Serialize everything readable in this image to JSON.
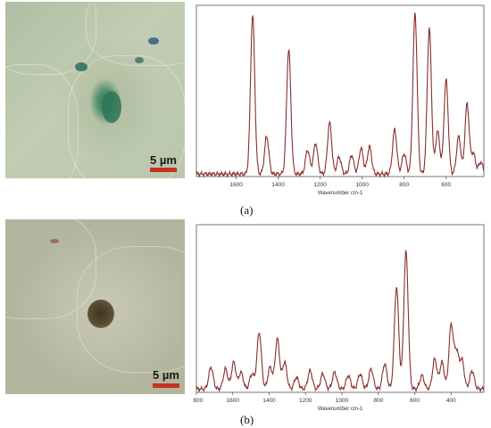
{
  "panels": [
    {
      "label": "(a)",
      "scale_label": "5 µm"
    },
    {
      "label": "(b)",
      "scale_label": "5 µm"
    }
  ],
  "colors": {
    "line": "#8b2c2c",
    "axis": "#555555",
    "scale_bar": "#c8321e"
  },
  "chart_data": [
    {
      "type": "line",
      "title": "",
      "xlabel": "Wavenumber cm-1",
      "ylabel": "",
      "xlim": [
        1790,
        420
      ],
      "ylim": [
        0,
        1
      ],
      "x_reversed": true,
      "grid": false,
      "xticks": [
        1600,
        1400,
        1200,
        1000,
        800,
        600
      ],
      "peaks": [
        {
          "x": 1522,
          "y": 0.93
        },
        {
          "x": 1455,
          "y": 0.22
        },
        {
          "x": 1350,
          "y": 0.73
        },
        {
          "x": 1260,
          "y": 0.14
        },
        {
          "x": 1222,
          "y": 0.18
        },
        {
          "x": 1155,
          "y": 0.3
        },
        {
          "x": 1110,
          "y": 0.1
        },
        {
          "x": 1050,
          "y": 0.11
        },
        {
          "x": 1005,
          "y": 0.15
        },
        {
          "x": 965,
          "y": 0.16
        },
        {
          "x": 845,
          "y": 0.26
        },
        {
          "x": 800,
          "y": 0.12
        },
        {
          "x": 748,
          "y": 0.94
        },
        {
          "x": 680,
          "y": 0.85
        },
        {
          "x": 640,
          "y": 0.25
        },
        {
          "x": 600,
          "y": 0.55
        },
        {
          "x": 540,
          "y": 0.22
        },
        {
          "x": 500,
          "y": 0.41
        },
        {
          "x": 470,
          "y": 0.12
        },
        {
          "x": 435,
          "y": 0.07
        }
      ]
    },
    {
      "type": "line",
      "title": "",
      "xlabel": "Wavenumber cm-1",
      "ylabel": "",
      "xlim": [
        1800,
        220
      ],
      "ylim": [
        0,
        1
      ],
      "x_reversed": true,
      "grid": false,
      "xticks": [
        1800,
        1600,
        1400,
        1200,
        1000,
        800,
        600,
        400
      ],
      "peaks": [
        {
          "x": 1720,
          "y": 0.13
        },
        {
          "x": 1640,
          "y": 0.12
        },
        {
          "x": 1595,
          "y": 0.16
        },
        {
          "x": 1555,
          "y": 0.1
        },
        {
          "x": 1495,
          "y": 0.09
        },
        {
          "x": 1455,
          "y": 0.34
        },
        {
          "x": 1395,
          "y": 0.13
        },
        {
          "x": 1355,
          "y": 0.3
        },
        {
          "x": 1315,
          "y": 0.16
        },
        {
          "x": 1250,
          "y": 0.07
        },
        {
          "x": 1175,
          "y": 0.11
        },
        {
          "x": 1105,
          "y": 0.09
        },
        {
          "x": 1040,
          "y": 0.1
        },
        {
          "x": 965,
          "y": 0.08
        },
        {
          "x": 900,
          "y": 0.09
        },
        {
          "x": 840,
          "y": 0.12
        },
        {
          "x": 765,
          "y": 0.15
        },
        {
          "x": 700,
          "y": 0.61
        },
        {
          "x": 648,
          "y": 0.82
        },
        {
          "x": 560,
          "y": 0.08
        },
        {
          "x": 490,
          "y": 0.18
        },
        {
          "x": 450,
          "y": 0.16
        },
        {
          "x": 400,
          "y": 0.38
        },
        {
          "x": 370,
          "y": 0.22
        },
        {
          "x": 340,
          "y": 0.17
        },
        {
          "x": 285,
          "y": 0.11
        }
      ]
    }
  ]
}
